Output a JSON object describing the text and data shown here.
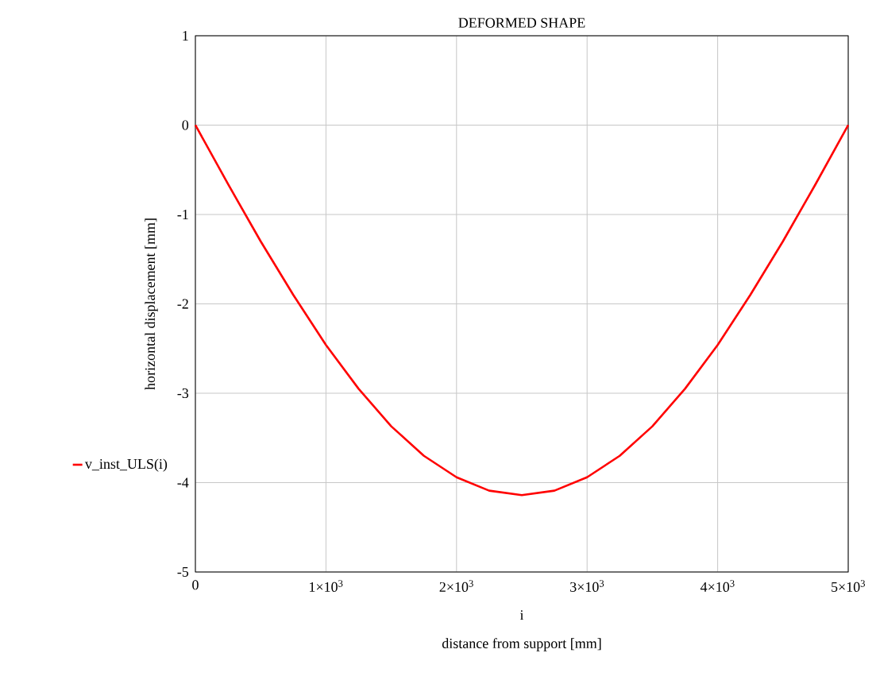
{
  "chart_data": {
    "type": "line",
    "title": "DEFORMED SHAPE",
    "xlabel": "distance from support [mm]",
    "ylabel": "horizontal displacement [mm]",
    "annotations": [
      "i"
    ],
    "x": [
      0,
      250,
      500,
      750,
      1000,
      1250,
      1500,
      1750,
      2000,
      2250,
      2500,
      2750,
      3000,
      3250,
      3500,
      3750,
      4000,
      4250,
      4500,
      4750,
      5000
    ],
    "series": [
      {
        "name": "v_inst_ULS(i)",
        "color": "#ff0000",
        "values": [
          0,
          -0.66,
          -1.3,
          -1.9,
          -2.46,
          -2.95,
          -3.37,
          -3.7,
          -3.94,
          -4.09,
          -4.14,
          -4.09,
          -3.94,
          -3.7,
          -3.37,
          -2.95,
          -2.46,
          -1.9,
          -1.3,
          -0.66,
          0
        ]
      }
    ],
    "xlim": [
      0,
      5000
    ],
    "ylim": [
      -5,
      1
    ],
    "xticks": [
      0,
      {
        "value": 1000,
        "label": "1×10$^{3}$"
      },
      {
        "value": 2000,
        "label": "2×10$^{3}$"
      },
      {
        "value": 3000,
        "label": "3×10$^{3}$"
      },
      {
        "value": 4000,
        "label": "4×10$^{3}$"
      },
      {
        "value": 5000,
        "label": "5×10$^{3}$"
      }
    ],
    "yticks": [
      -5,
      -4,
      -3,
      -2,
      -1,
      0,
      1
    ],
    "grid": true,
    "legend": "left",
    "marker": "none",
    "line_style": "solid"
  }
}
